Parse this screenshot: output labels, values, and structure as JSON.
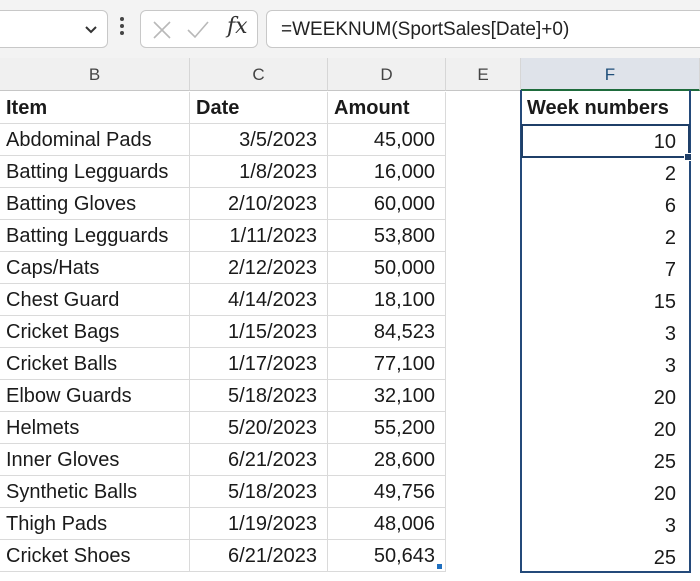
{
  "formula_bar": {
    "name_box_value": "",
    "fx_label": "fx",
    "formula": "=WEEKNUM(SportSales[Date]+0)"
  },
  "columns": [
    "B",
    "C",
    "D",
    "E",
    "F"
  ],
  "selected_column": "F",
  "table": {
    "headers": [
      "Item",
      "Date",
      "Amount"
    ],
    "rows": [
      [
        "Abdominal Pads",
        "3/5/2023",
        "45,000"
      ],
      [
        "Batting Legguards",
        "1/8/2023",
        "16,000"
      ],
      [
        "Batting Gloves",
        "2/10/2023",
        "60,000"
      ],
      [
        "Batting Legguards",
        "1/11/2023",
        "53,800"
      ],
      [
        "Caps/Hats",
        "2/12/2023",
        "50,000"
      ],
      [
        "Chest Guard",
        "4/14/2023",
        "18,100"
      ],
      [
        "Cricket Bags",
        "1/15/2023",
        "84,523"
      ],
      [
        "Cricket Balls",
        "1/17/2023",
        "77,100"
      ],
      [
        "Elbow Guards",
        "5/18/2023",
        "32,100"
      ],
      [
        "Helmets",
        "5/20/2023",
        "55,200"
      ],
      [
        "Inner Gloves",
        "6/21/2023",
        "28,600"
      ],
      [
        "Synthetic Balls",
        "5/18/2023",
        "49,756"
      ],
      [
        "Thigh Pads",
        "1/19/2023",
        "48,006"
      ],
      [
        "Cricket Shoes",
        "6/21/2023",
        "50,643"
      ]
    ]
  },
  "week_numbers": {
    "header": "Week numbers",
    "values": [
      "10",
      "2",
      "6",
      "2",
      "7",
      "15",
      "3",
      "3",
      "20",
      "20",
      "25",
      "20",
      "3",
      "25"
    ]
  },
  "colors": {
    "selection_border": "#1f3f68",
    "selected_header_bg": "#dfe3ea",
    "header_bg": "#f0f0f0",
    "gridline": "#dadada",
    "spill_marker": "#1f6fbf"
  }
}
